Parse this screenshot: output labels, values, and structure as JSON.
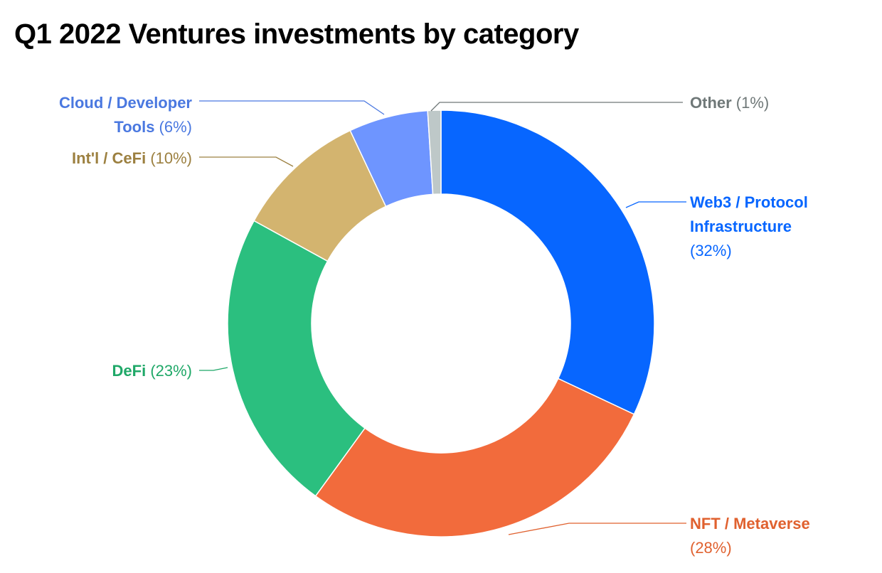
{
  "title": "Q1 2022 Ventures investments by category",
  "chart_data": {
    "type": "pie",
    "variant": "donut",
    "title": "Q1 2022 Ventures investments by category",
    "unit": "%",
    "slices": [
      {
        "name": "Web3 / Protocol Infrastructure",
        "value": 32,
        "color": "#0766ff",
        "label_name_lines": [
          "Web3 / Protocol",
          "Infrastructure"
        ],
        "label_pct": "(32%)"
      },
      {
        "name": "NFT / Metaverse",
        "value": 28,
        "color": "#f26b3c",
        "label_name_lines": [
          "NFT / Metaverse"
        ],
        "label_pct": "(28%)"
      },
      {
        "name": "DeFi",
        "value": 23,
        "color": "#2bbf7f",
        "label_name_lines": [
          "DeFi"
        ],
        "label_pct": "(23%)"
      },
      {
        "name": "Int'l / CeFi",
        "value": 10,
        "color": "#d3b46f",
        "label_name_lines": [
          "Int'l / CeFi"
        ],
        "label_pct": "(10%)"
      },
      {
        "name": "Cloud / Developer Tools",
        "value": 6,
        "color": "#6e95ff",
        "label_name_lines": [
          "Cloud / Developer",
          "Tools"
        ],
        "label_pct": "(6%)"
      },
      {
        "name": "Other",
        "value": 1,
        "color": "#bec8c8",
        "label_name_lines": [
          "Other"
        ],
        "label_pct": "(1%)"
      }
    ],
    "label_colors": {
      "Web3 / Protocol Infrastructure": "#0766ff",
      "NFT / Metaverse": "#e0612f",
      "DeFi": "#1fa868",
      "Int'l / CeFi": "#9c8040",
      "Cloud / Developer Tools": "#4a78e0",
      "Other": "#6f7878"
    }
  }
}
